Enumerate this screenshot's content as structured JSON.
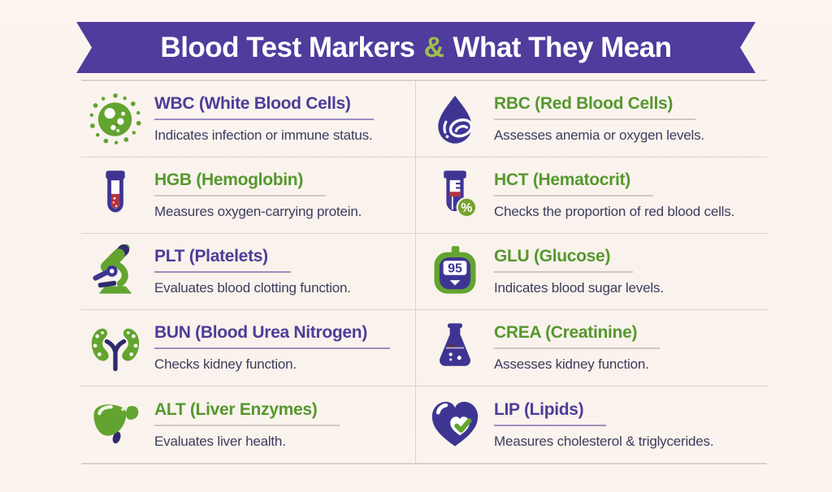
{
  "banner": {
    "title_prefix": "Blood Test Markers",
    "amp": "&",
    "title_suffix": "What They Mean",
    "ribbon_color": "#4f3c9d",
    "amp_color": "#9fbe4b"
  },
  "colors": {
    "title_purple": "#4e3c99",
    "title_green": "#55982e",
    "description_text": "#3c3c5e",
    "divider": "#d9d3cf",
    "icon_green": "#63a430",
    "icon_green_dark": "#4f8c22",
    "icon_indigo": "#3e3593",
    "icon_indigo_dark": "#2e2a6e",
    "icon_red": "#b23343",
    "icon_maroon": "#5d2a3c",
    "background": "#faf2ec"
  },
  "markers": [
    {
      "abbr": "WBC",
      "full": "(White Blood Cells)",
      "desc": "Indicates infection or immune status.",
      "title_color": "purple",
      "icon": "wbc-cell-icon"
    },
    {
      "abbr": "RBC",
      "full": "(Red Blood Cells)",
      "desc": "Assesses anemia or oxygen levels.",
      "title_color": "green",
      "icon": "blood-drop-icon"
    },
    {
      "abbr": "HGB",
      "full": "(Hemoglobin)",
      "desc": "Measures oxygen-carrying protein.",
      "title_color": "green",
      "icon": "test-tube-icon"
    },
    {
      "abbr": "HCT",
      "full": "(Hematocrit)",
      "desc": "Checks the proportion of red blood cells.",
      "title_color": "green",
      "icon": "test-tube-percent-icon",
      "badge": "%"
    },
    {
      "abbr": "PLT",
      "full": "(Platelets)",
      "desc": "Evaluates blood clotting function.",
      "title_color": "purple",
      "icon": "microscope-icon"
    },
    {
      "abbr": "GLU",
      "full": "(Glucose)",
      "desc": "Indicates blood sugar levels.",
      "title_color": "green",
      "icon": "glucometer-icon",
      "reading": "95"
    },
    {
      "abbr": "BUN",
      "full": "(Blood Urea Nitrogen)",
      "desc": "Checks kidney function.",
      "title_color": "purple",
      "icon": "kidneys-icon"
    },
    {
      "abbr": "CREA",
      "full": "(Creatinine)",
      "desc": "Assesses kidney function.",
      "title_color": "green",
      "icon": "flask-icon"
    },
    {
      "abbr": "ALT",
      "full": "(Liver Enzymes)",
      "desc": "Evaluates liver health.",
      "title_color": "green",
      "icon": "liver-icon"
    },
    {
      "abbr": "LIP",
      "full": "(Lipids)",
      "desc": "Measures cholesterol & triglycerides.",
      "title_color": "purple",
      "icon": "heart-check-icon"
    }
  ]
}
